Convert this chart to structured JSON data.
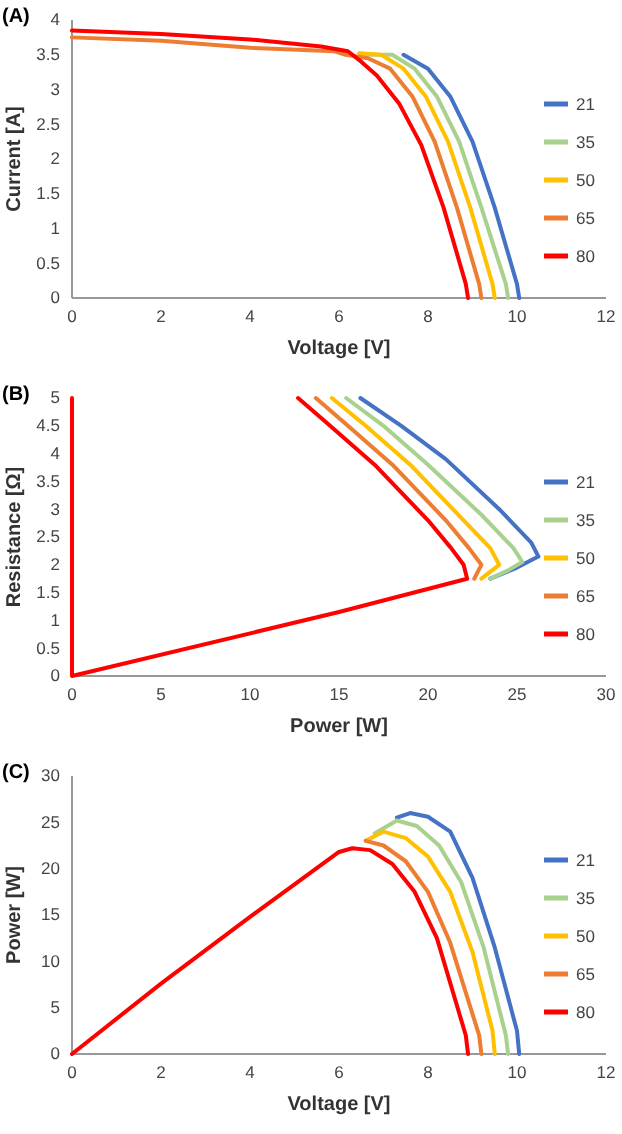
{
  "chart_data": [
    {
      "type": "line",
      "title": "(A)",
      "xlabel": "Voltage [V]",
      "ylabel": "Current [A]",
      "xlim": [
        0,
        12
      ],
      "ylim": [
        0,
        4
      ],
      "xticks": [
        0,
        2,
        4,
        6,
        8,
        10,
        12
      ],
      "yticks": [
        0,
        0.5,
        1,
        1.5,
        2,
        2.5,
        3,
        3.5,
        4
      ],
      "grid": false,
      "legend": "right",
      "marker": "none",
      "line_style": "solid",
      "series": [
        {
          "name": "21",
          "color": "#4472c4",
          "x": [
            7.45,
            8,
            8.5,
            9,
            9.5,
            10,
            10.05
          ],
          "values": [
            3.5,
            3.3,
            2.9,
            2.25,
            1.3,
            0.2,
            0
          ]
        },
        {
          "name": "35",
          "color": "#a9d18e",
          "x": [
            6.5,
            7.2,
            7.7,
            8.2,
            8.7,
            9.2,
            9.75,
            9.8
          ],
          "values": [
            3.5,
            3.5,
            3.3,
            2.9,
            2.25,
            1.3,
            0.2,
            0
          ]
        },
        {
          "name": "50",
          "color": "#ffc000",
          "x": [
            6.45,
            6.95,
            7.45,
            7.95,
            8.45,
            8.95,
            9.45,
            9.5
          ],
          "values": [
            3.52,
            3.5,
            3.3,
            2.9,
            2.25,
            1.3,
            0.2,
            0
          ]
        },
        {
          "name": "65",
          "color": "#ed7d31",
          "x": [
            0,
            2,
            4,
            5.9,
            6.15,
            6.65,
            7.15,
            7.65,
            8.15,
            8.65,
            9.15,
            9.2
          ],
          "values": [
            3.75,
            3.7,
            3.6,
            3.55,
            3.5,
            3.45,
            3.3,
            2.9,
            2.25,
            1.3,
            0.2,
            0
          ]
        },
        {
          "name": "80",
          "color": "#ff0000",
          "x": [
            0,
            2,
            4,
            5.6,
            6.2,
            6.5,
            6.85,
            7.35,
            7.85,
            8.35,
            8.85,
            8.9
          ],
          "values": [
            3.85,
            3.8,
            3.72,
            3.62,
            3.55,
            3.4,
            3.2,
            2.8,
            2.2,
            1.3,
            0.2,
            0
          ]
        }
      ]
    },
    {
      "type": "line",
      "title": "(B)",
      "xlabel": "Power [W]",
      "ylabel": "Resistance [Ω]",
      "xlim": [
        0,
        30
      ],
      "ylim": [
        0,
        5
      ],
      "xticks": [
        0,
        5,
        10,
        15,
        20,
        25,
        30
      ],
      "yticks": [
        0,
        0.5,
        1,
        1.5,
        2,
        2.5,
        3,
        3.5,
        4,
        4.5,
        5
      ],
      "grid": false,
      "legend": "right",
      "marker": "none",
      "line_style": "solid",
      "series": [
        {
          "name": "21",
          "color": "#4472c4",
          "x": [
            23.5,
            25,
            26.2,
            25.8,
            24,
            21,
            18.5,
            16.2
          ],
          "values": [
            1.75,
            1.95,
            2.15,
            2.4,
            3,
            3.9,
            4.5,
            5
          ]
        },
        {
          "name": "35",
          "color": "#a9d18e",
          "x": [
            23.5,
            24.5,
            25.3,
            24.8,
            23,
            20,
            17.5,
            15.4
          ],
          "values": [
            1.75,
            1.9,
            2.05,
            2.3,
            2.9,
            3.8,
            4.5,
            5
          ]
        },
        {
          "name": "50",
          "color": "#ffc000",
          "x": [
            23,
            24,
            23.5,
            22,
            19,
            16.5,
            14.6
          ],
          "values": [
            1.75,
            2,
            2.3,
            2.8,
            3.8,
            4.5,
            5
          ]
        },
        {
          "name": "65",
          "color": "#ed7d31",
          "x": [
            22.6,
            23,
            22.3,
            21,
            18,
            15.5,
            13.7
          ],
          "values": [
            1.75,
            2,
            2.3,
            2.8,
            3.8,
            4.5,
            5
          ]
        },
        {
          "name": "80",
          "color": "#ff0000",
          "x": [
            0,
            0,
            15,
            22.2,
            22,
            21.3,
            20,
            17,
            14.5,
            12.7
          ],
          "values": [
            5,
            0,
            1.15,
            1.75,
            2,
            2.3,
            2.8,
            3.8,
            4.5,
            5
          ]
        }
      ]
    },
    {
      "type": "line",
      "title": "(C)",
      "xlabel": "Voltage [V]",
      "ylabel": "Power [W]",
      "xlim": [
        0,
        12
      ],
      "ylim": [
        0,
        30
      ],
      "xticks": [
        0,
        2,
        4,
        6,
        8,
        10,
        12
      ],
      "yticks": [
        0,
        5,
        10,
        15,
        20,
        25,
        30
      ],
      "grid": false,
      "legend": "right",
      "marker": "none",
      "line_style": "solid",
      "series": [
        {
          "name": "21",
          "color": "#4472c4",
          "x": [
            7.3,
            7.6,
            8,
            8.5,
            9,
            9.5,
            10,
            10.05
          ],
          "values": [
            25.5,
            26,
            25.6,
            24,
            19,
            11.5,
            2.5,
            0
          ]
        },
        {
          "name": "35",
          "color": "#a9d18e",
          "x": [
            6.8,
            7.3,
            7.75,
            8.25,
            8.75,
            9.25,
            9.75,
            9.8
          ],
          "values": [
            23.8,
            25.2,
            24.6,
            22.5,
            18.5,
            11.5,
            2,
            0
          ]
        },
        {
          "name": "50",
          "color": "#ffc000",
          "x": [
            6.6,
            7,
            7.5,
            8,
            8.5,
            9,
            9.45,
            9.5
          ],
          "values": [
            23,
            24,
            23.3,
            21.3,
            17.5,
            11,
            2.5,
            0
          ]
        },
        {
          "name": "65",
          "color": "#ed7d31",
          "x": [
            6.6,
            7,
            7.5,
            8,
            8.5,
            9.15,
            9.2
          ],
          "values": [
            23,
            22.5,
            20.8,
            17.5,
            12,
            2,
            0
          ]
        },
        {
          "name": "80",
          "color": "#ff0000",
          "x": [
            0,
            2,
            4,
            6,
            6.3,
            6.7,
            7.2,
            7.7,
            8.2,
            8.85,
            8.9
          ],
          "values": [
            0,
            7.6,
            14.8,
            21.8,
            22.2,
            22,
            20.5,
            17.5,
            12.5,
            2,
            0
          ]
        }
      ]
    }
  ]
}
